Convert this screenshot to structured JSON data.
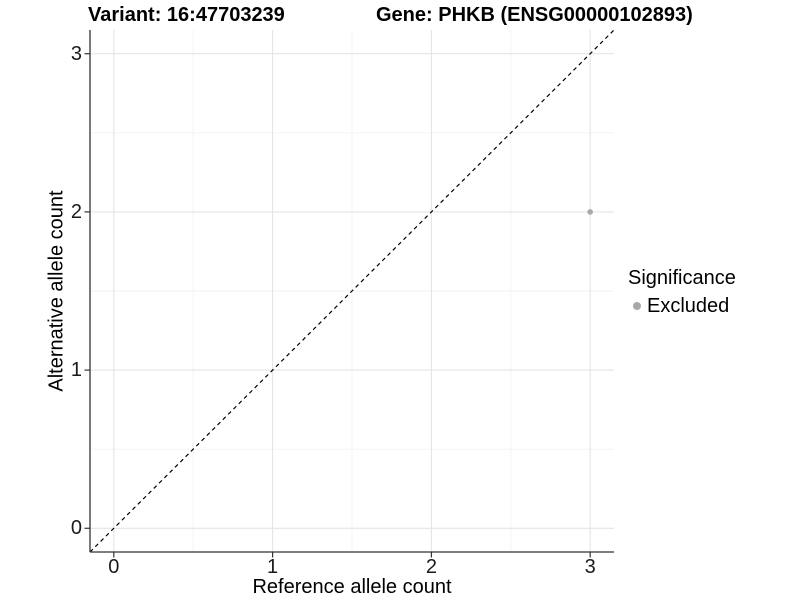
{
  "chart_data": {
    "type": "scatter",
    "titles": {
      "left": "Variant: 16:47703239",
      "right": "Gene: PHKB (ENSG00000102893)"
    },
    "xlabel": "Reference allele count",
    "ylabel": "Alternative allele count",
    "xlim": [
      -0.15,
      3.15
    ],
    "ylim": [
      -0.15,
      3.15
    ],
    "x_ticks": [
      0,
      1,
      2,
      3
    ],
    "y_ticks": [
      0,
      1,
      2,
      3
    ],
    "minor_gridlines": [
      0.5,
      1.5,
      2.5
    ],
    "grid": true,
    "points": [
      {
        "x": 3,
        "y": 2,
        "series": "Excluded"
      }
    ],
    "reference_line": {
      "slope": 1,
      "intercept": 0,
      "style": "dashed"
    },
    "legend": {
      "title": "Significance",
      "position": "right",
      "items": [
        {
          "label": "Excluded",
          "color": "#a8a8a8"
        }
      ]
    },
    "colors": {
      "point": "#a8a8a8",
      "grid_major": "#e4e4e4",
      "grid_minor": "#f2f2f2",
      "axis": "#333333",
      "reference_line": "#000000",
      "text": "#000000"
    }
  }
}
